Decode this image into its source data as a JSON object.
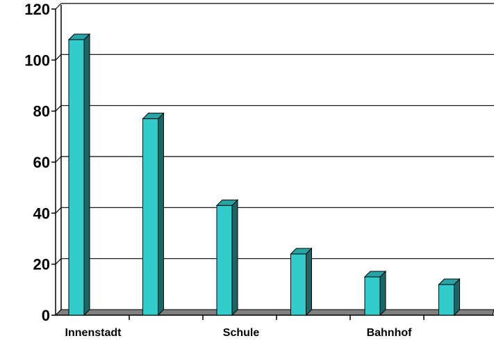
{
  "chart_data": {
    "type": "bar",
    "title": "",
    "xlabel": "",
    "ylabel": "",
    "ylim": [
      0,
      120
    ],
    "yticks": [
      "0",
      "20",
      "40",
      "60",
      "80",
      "100",
      "120"
    ],
    "categories": [
      "Innenstadt",
      "",
      "Schule",
      "",
      "Bahnhof",
      ""
    ],
    "values": [
      108,
      77,
      43,
      24,
      15,
      12
    ],
    "grid": true,
    "legend": "none",
    "three_d": true,
    "colors": {
      "bar_front": "#33CCCC",
      "bar_side": "#1A6666",
      "bar_top": "#29A3A3",
      "floor": "#808080",
      "gridline": "#000000",
      "text": "#000000"
    }
  }
}
